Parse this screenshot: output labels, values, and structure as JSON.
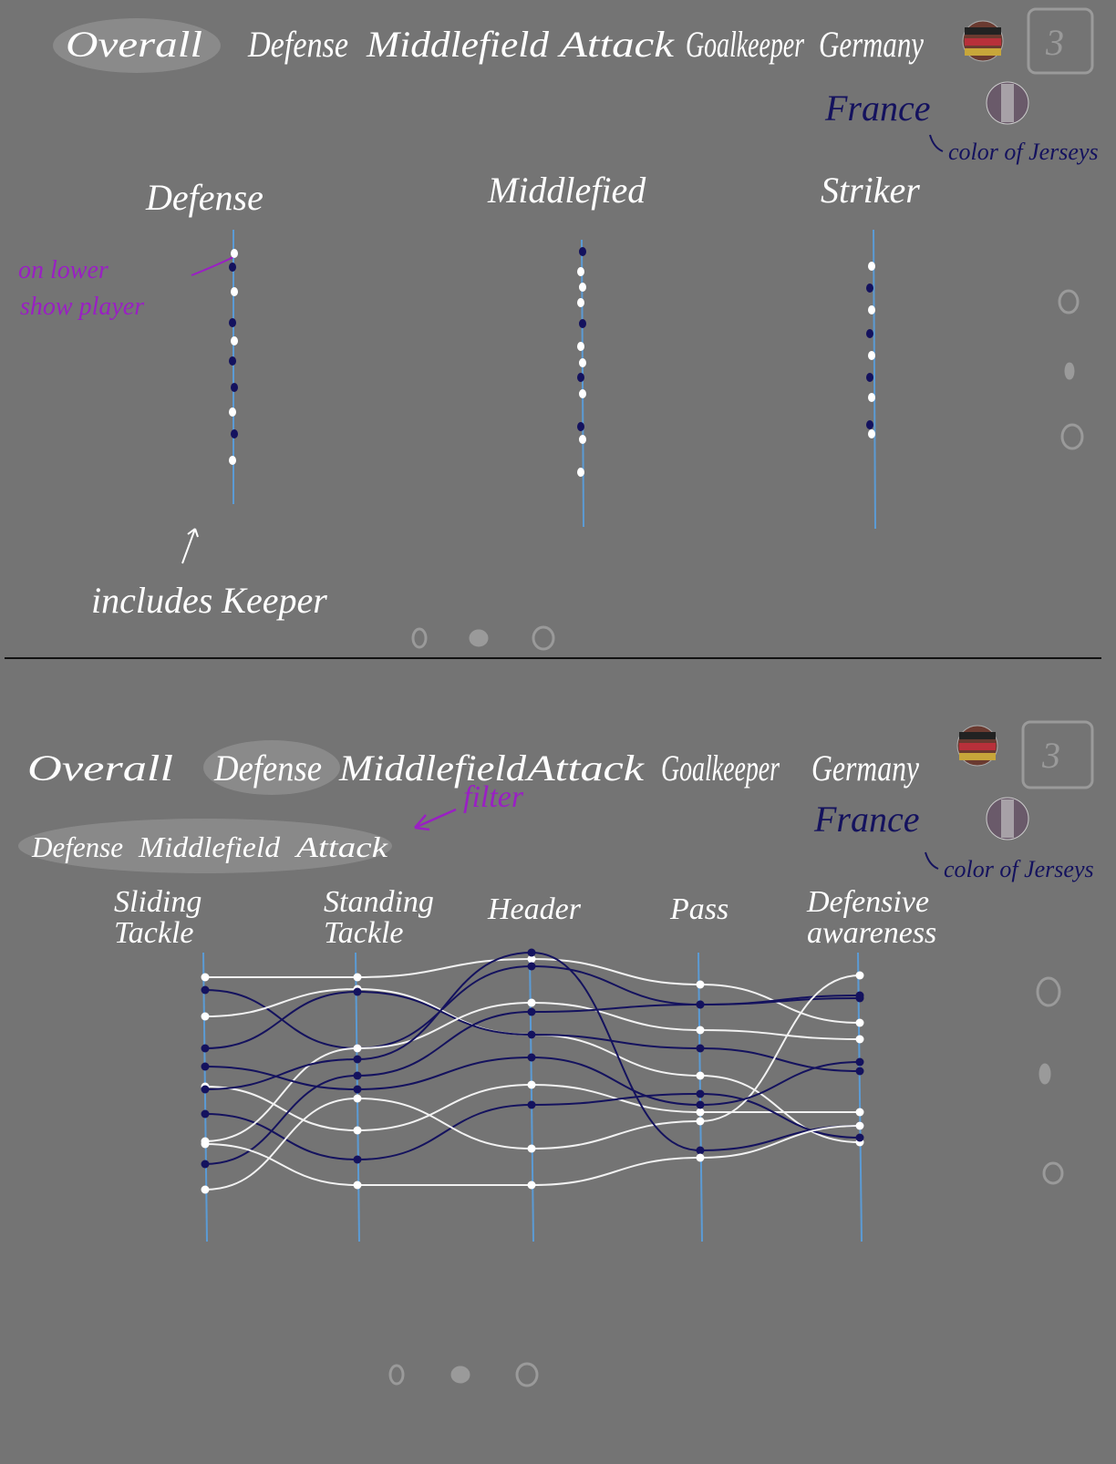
{
  "top_panel": {
    "tabs": [
      "Overall",
      "Defense",
      "Middlefield",
      "Attack",
      "Goalkeeper",
      "Germany"
    ],
    "page": "3",
    "country_alt": "France",
    "jersey_note": "color of Jerseys",
    "columns": [
      "Defense",
      "Middlefied",
      "Striker"
    ],
    "annotation_lines": [
      "on lower",
      "show player"
    ],
    "keeper_note": "includes Keeper"
  },
  "bottom_panel": {
    "tabs": [
      "Overall",
      "Defense",
      "Middlefield",
      "Attack",
      "Goalkeeper",
      "Germany"
    ],
    "page": "3",
    "country_alt": "France",
    "jersey_note": "color of Jerseys",
    "filter_note": "filter",
    "subtabs": [
      "Defense",
      "Middlefield",
      "Attack"
    ],
    "axes": [
      [
        "Sliding",
        "Tackle"
      ],
      [
        "Standing",
        "Tackle"
      ],
      [
        "Header"
      ],
      [
        "Pass"
      ],
      [
        "Defensive",
        "awareness"
      ]
    ]
  }
}
